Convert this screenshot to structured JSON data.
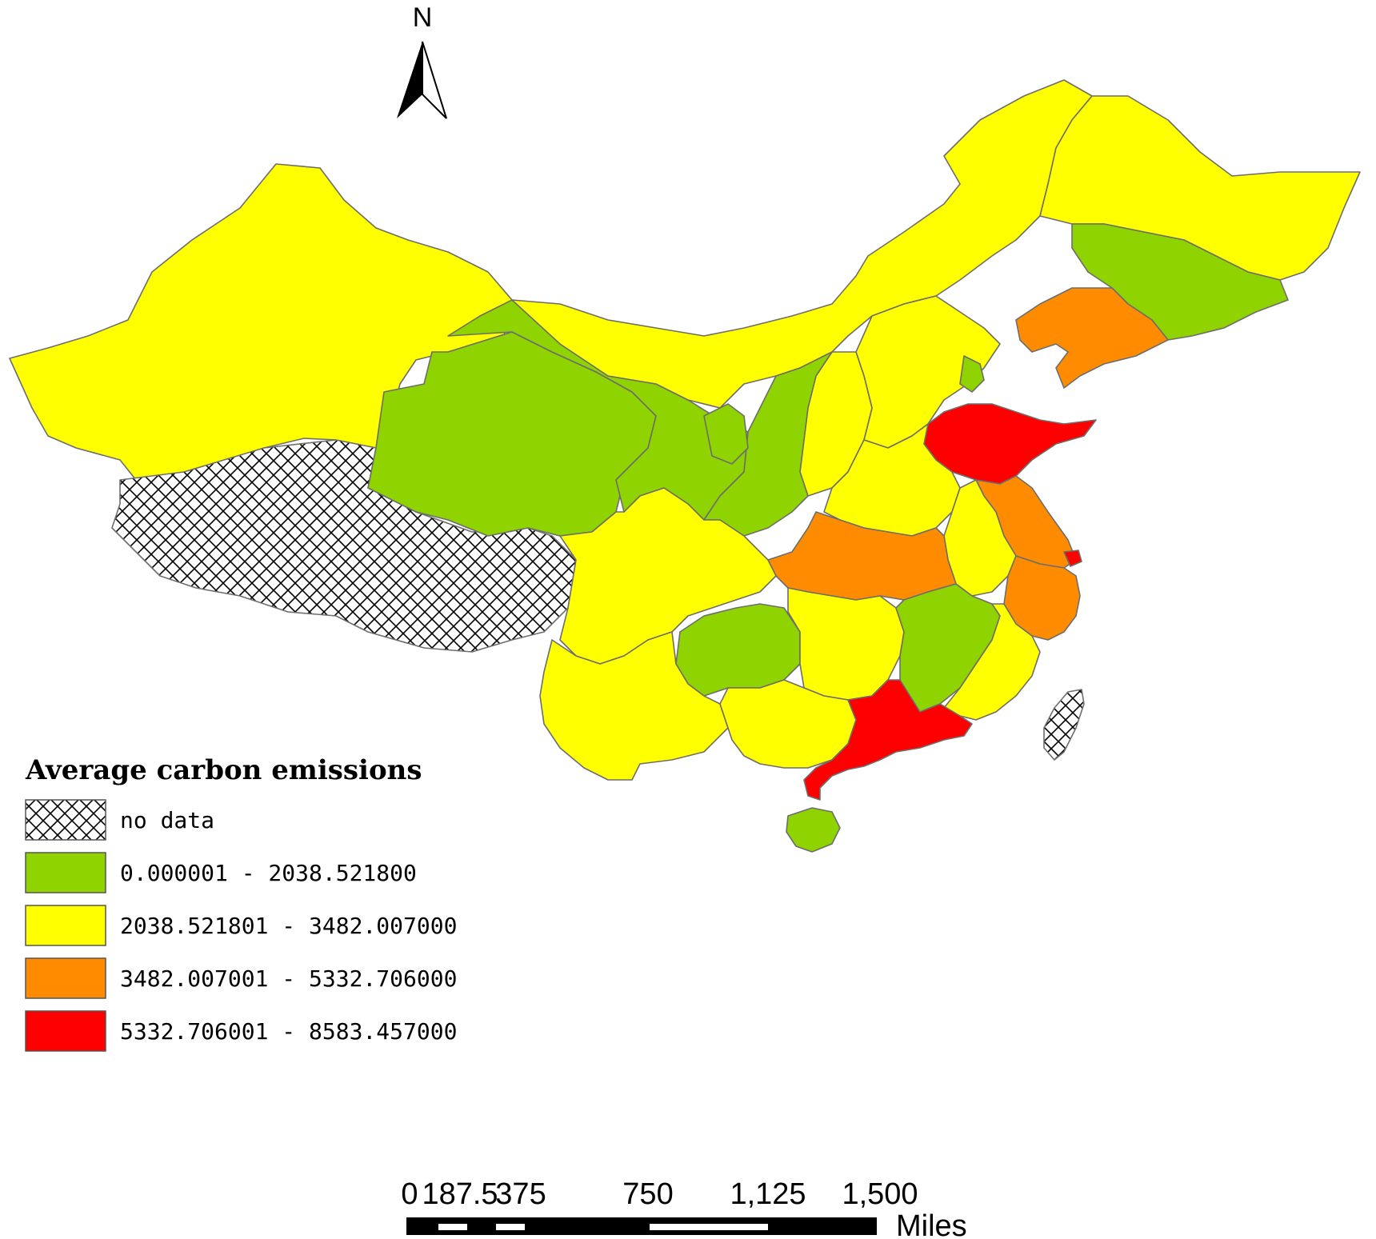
{
  "north_arrow": {
    "label": "N"
  },
  "legend": {
    "title": "Average carbon emissions",
    "items": [
      {
        "label": "no data",
        "pattern": "crosshatch",
        "color": "#ffffff"
      },
      {
        "label": "0.000001 - 2038.521800",
        "color": "#8fd400"
      },
      {
        "label": "2038.521801 - 3482.007000",
        "color": "#ffff00"
      },
      {
        "label": "3482.007001 - 5332.706000",
        "color": "#ff8c00"
      },
      {
        "label": "5332.706001 - 8583.457000",
        "color": "#ff0000"
      }
    ]
  },
  "scale_bar": {
    "ticks": [
      "0",
      "187.5",
      "375",
      "750",
      "1,125",
      "1,500"
    ],
    "unit": "Miles"
  },
  "colors": {
    "green": "#8fd400",
    "yellow": "#ffff00",
    "orange": "#ff8c00",
    "red": "#ff0000",
    "border": "#6d6d6d"
  }
}
